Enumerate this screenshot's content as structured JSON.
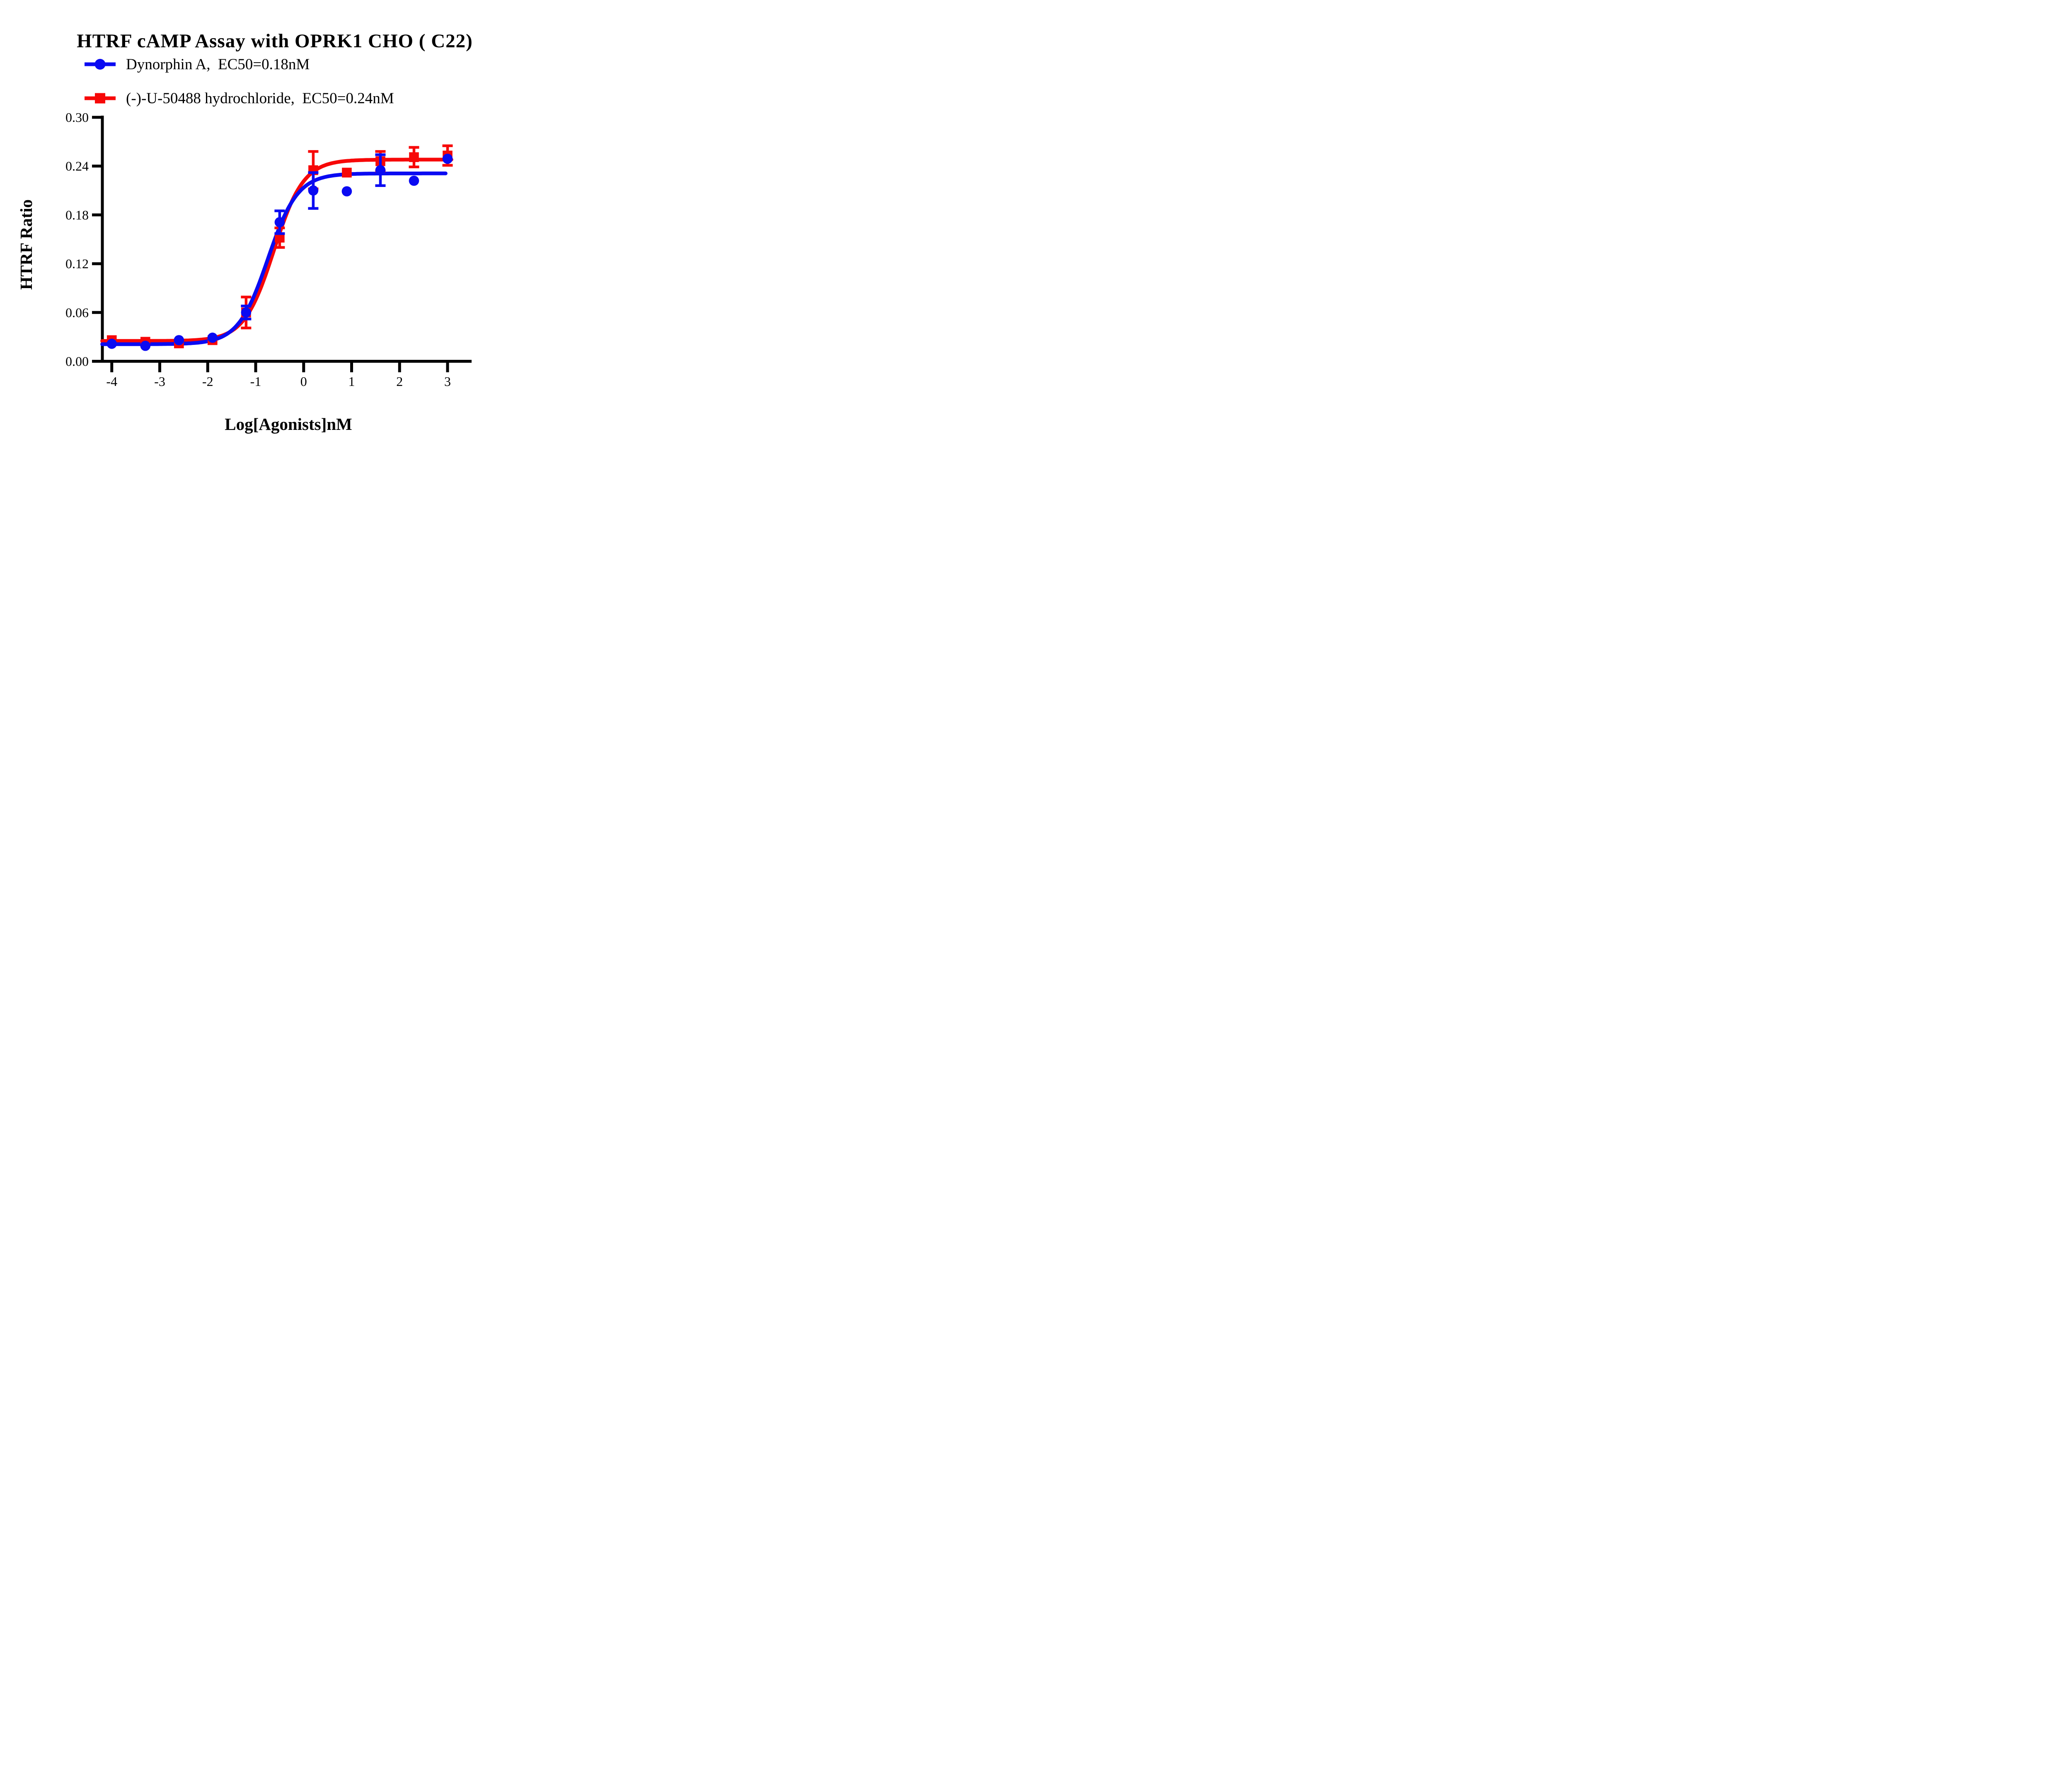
{
  "chart_data": {
    "type": "line",
    "title": "HTRF cAMP Assay with OPRK1 CHO ( C22)",
    "xlabel": "Log[Agonists]nM",
    "ylabel": "HTRF Ratio",
    "xlim": [
      -4.2,
      3.35
    ],
    "ylim": [
      0,
      0.3
    ],
    "x_ticks": [
      "-4",
      "-3",
      "-2",
      "-1",
      "0",
      "1",
      "2",
      "3"
    ],
    "y_ticks": [
      "0.00",
      "0.06",
      "0.12",
      "0.18",
      "0.24",
      "0.30"
    ],
    "grid": false,
    "legend_position": "top-left",
    "axis_color": "#000000",
    "series": [
      {
        "name": "Dynorphin A",
        "legend": "Dynorphin A,  EC50=0.18nM",
        "ec50_label": "EC50=0.18nM",
        "ec50_nM": 0.18,
        "color": "#0a0af2",
        "marker": "circle",
        "x": [
          -4.0,
          -3.3,
          -2.6,
          -1.9,
          -1.2,
          -0.5,
          0.2,
          0.9,
          1.6,
          2.3,
          3.0
        ],
        "y": [
          0.0215,
          0.019,
          0.026,
          0.029,
          0.06,
          0.171,
          0.21,
          0.209,
          0.235,
          0.222,
          0.249
        ],
        "err": [
          0,
          0,
          0,
          0,
          0.008,
          0.014,
          0.022,
          0,
          0.019,
          0,
          0
        ],
        "fit": {
          "bottom": 0.021,
          "top": 0.231,
          "logEC50": -0.745,
          "hill": 1.4,
          "x_start": -4.2,
          "x_end": 2.98
        }
      },
      {
        "name": "(-)-U-50488 hydrochloride",
        "legend": "(-)-U-50488 hydrochloride,  EC50=0.24nM",
        "ec50_label": "EC50=0.24nM",
        "ec50_nM": 0.24,
        "color": "#f70808",
        "marker": "square",
        "x": [
          -4.0,
          -3.3,
          -2.6,
          -1.9,
          -1.2,
          -0.5,
          0.2,
          0.9,
          1.6,
          2.3,
          3.0
        ],
        "y": [
          0.026,
          0.024,
          0.022,
          0.026,
          0.06,
          0.152,
          0.235,
          0.232,
          0.246,
          0.251,
          0.253
        ],
        "err": [
          0,
          0,
          0,
          0,
          0.019,
          0.012,
          0.023,
          0,
          0.012,
          0.012,
          0.012
        ],
        "fit": {
          "bottom": 0.025,
          "top": 0.248,
          "logEC50": -0.62,
          "hill": 1.4,
          "x_start": -4.2,
          "x_end": 3.08
        }
      }
    ]
  }
}
